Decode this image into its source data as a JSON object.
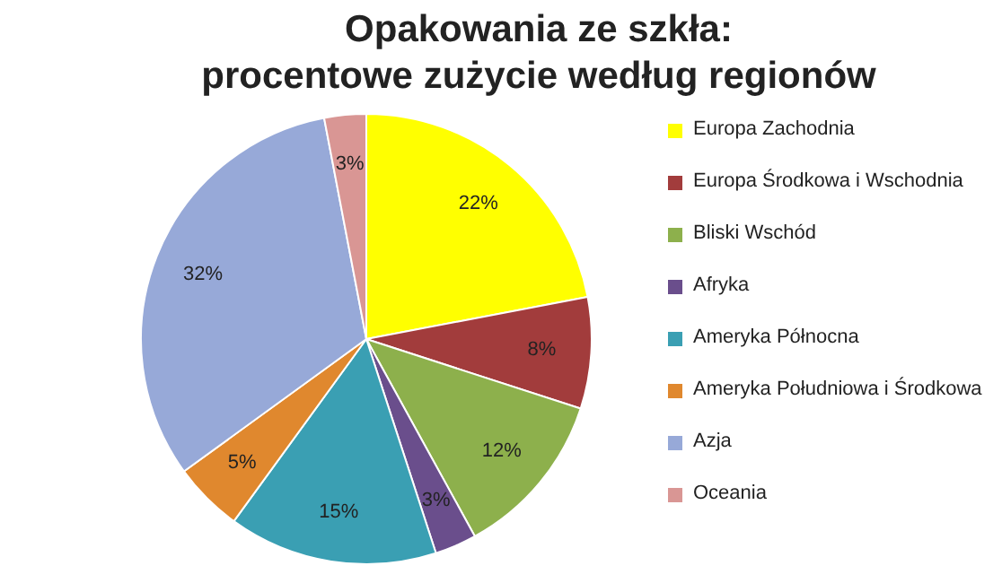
{
  "chart_data": {
    "type": "pie",
    "title": "Opakowania ze szkła:\nprocentowe zużycie według regionów",
    "categories": [
      "Europa Zachodnia",
      "Europa Środkowa i Wschodnia",
      "Bliski Wschód",
      "Afryka",
      "Ameryka Północna",
      "Ameryka Południowa i Środkowa",
      "Azja",
      "Oceania"
    ],
    "values": [
      22,
      8,
      12,
      3,
      15,
      5,
      32,
      3
    ],
    "colors": [
      "#ffff00",
      "#a23c3c",
      "#8db04c",
      "#6a4e8c",
      "#3a9fb3",
      "#e0882e",
      "#97a9d8",
      "#d99694"
    ],
    "value_labels": [
      "22%",
      "8%",
      "12%",
      "3%",
      "15%",
      "5%",
      "32%",
      "3%"
    ],
    "legend": "right"
  }
}
